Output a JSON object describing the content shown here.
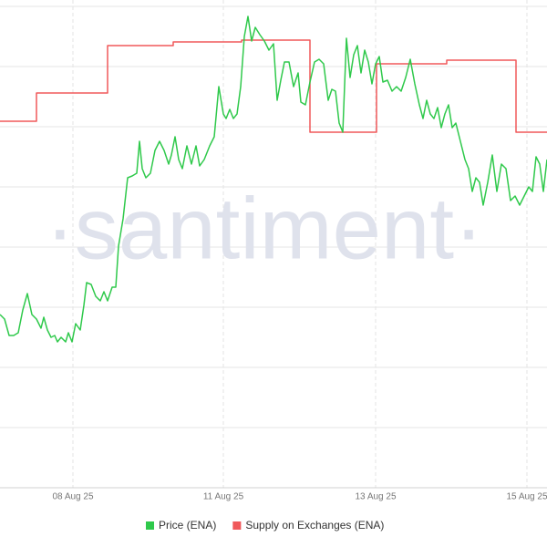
{
  "chart_data": {
    "type": "line",
    "watermark": "·santiment·",
    "xlim": [
      0,
      600
    ],
    "xticks": [
      {
        "value": 80,
        "label": "08 Aug 25"
      },
      {
        "value": 245,
        "label": "11 Aug 25"
      },
      {
        "value": 412,
        "label": "13 Aug 25"
      },
      {
        "value": 578,
        "label": "15 Aug 25"
      }
    ],
    "ylim": [
      0,
      535
    ],
    "yticks": [
      0,
      66,
      132,
      198,
      264,
      330,
      396,
      462,
      528
    ],
    "grid": true,
    "series": [
      {
        "name": "Price (ENA)",
        "color": "#2fc94b",
        "x": [
          0,
          5,
          10,
          15,
          20,
          25,
          30,
          35,
          40,
          45,
          48,
          52,
          56,
          60,
          63,
          67,
          72,
          75,
          79,
          83,
          88,
          92,
          95,
          100,
          105,
          110,
          114,
          118,
          123,
          127,
          130,
          135,
          140,
          145,
          150,
          153,
          156,
          160,
          165,
          170,
          175,
          180,
          185,
          188,
          192,
          196,
          200,
          205,
          210,
          215,
          219,
          224,
          230,
          235,
          240,
          245,
          248,
          252,
          256,
          260,
          264,
          268,
          272,
          276,
          280,
          285,
          290,
          295,
          300,
          304,
          308,
          312,
          317,
          322,
          327,
          330,
          335,
          340,
          345,
          350,
          355,
          360,
          364,
          368,
          372,
          376,
          380,
          384,
          388,
          392,
          396,
          400,
          404,
          408,
          412,
          416,
          420,
          425,
          430,
          435,
          440,
          445,
          450,
          455,
          460,
          464,
          468,
          472,
          476,
          480,
          484,
          488,
          492,
          496,
          500,
          505,
          510,
          514,
          518,
          522,
          526,
          530,
          535,
          540,
          545,
          550,
          555,
          560,
          565,
          570,
          575,
          580,
          584,
          588,
          592,
          596,
          600
        ],
        "values": [
          190,
          185,
          167,
          167,
          170,
          195,
          213,
          190,
          185,
          175,
          187,
          173,
          165,
          167,
          160,
          165,
          160,
          170,
          160,
          180,
          173,
          200,
          225,
          223,
          210,
          205,
          215,
          205,
          220,
          220,
          265,
          295,
          340,
          342,
          345,
          380,
          350,
          340,
          345,
          370,
          380,
          370,
          355,
          365,
          385,
          360,
          350,
          375,
          355,
          375,
          353,
          360,
          375,
          385,
          440,
          410,
          405,
          415,
          405,
          410,
          440,
          495,
          517,
          490,
          505,
          497,
          490,
          480,
          487,
          425,
          447,
          467,
          467,
          440,
          455,
          423,
          420,
          445,
          467,
          470,
          465,
          425,
          437,
          435,
          400,
          390,
          493,
          450,
          475,
          485,
          455,
          480,
          467,
          443,
          465,
          473,
          445,
          447,
          435,
          440,
          435,
          450,
          470,
          443,
          420,
          405,
          425,
          410,
          405,
          417,
          395,
          410,
          420,
          395,
          400,
          380,
          360,
          350,
          325,
          340,
          335,
          310,
          335,
          365,
          325,
          355,
          350,
          315,
          320,
          310,
          320,
          330,
          325,
          363,
          355,
          325,
          360
        ]
      },
      {
        "name": "Supply on Exchanges (ENA)",
        "color": "#f0585a",
        "x": [
          0,
          40,
          40,
          118,
          118,
          190,
          190,
          265,
          265,
          340,
          340,
          413,
          413,
          490,
          490,
          566,
          566,
          600
        ],
        "values": [
          402,
          402,
          433,
          433,
          485,
          485,
          489,
          489,
          491,
          491,
          390,
          390,
          465,
          465,
          469,
          469,
          390,
          390
        ]
      }
    ]
  }
}
